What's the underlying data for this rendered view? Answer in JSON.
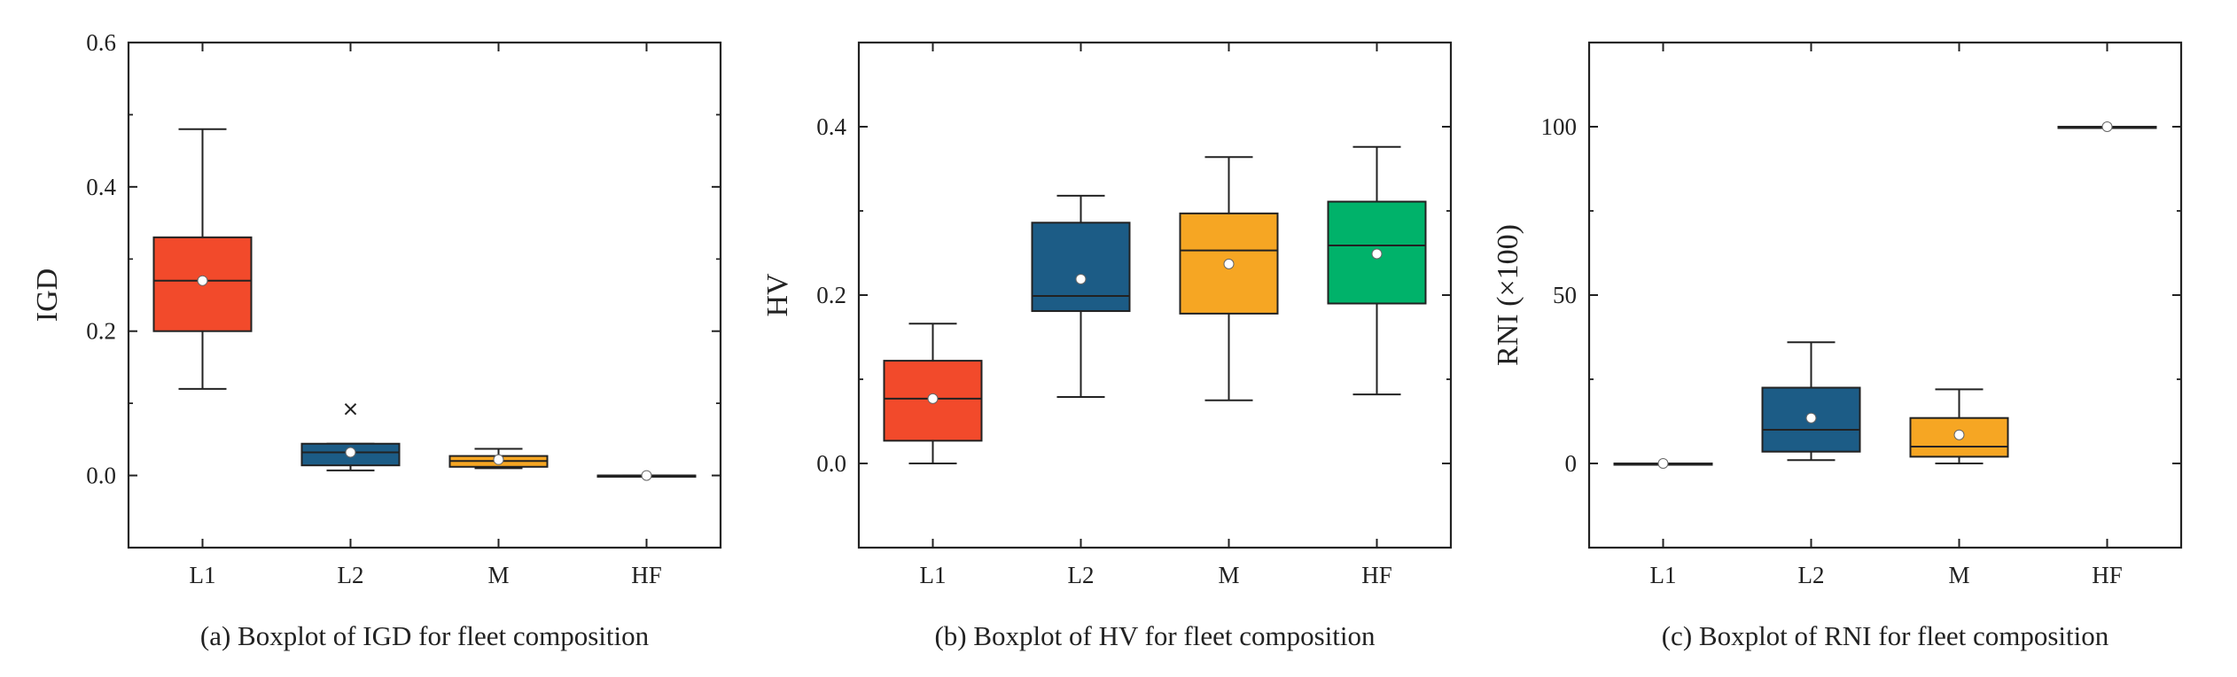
{
  "chart_data": [
    {
      "id": "a",
      "type": "boxplot",
      "title": "(a) Boxplot of IGD for fleet composition",
      "ylabel": "IGD",
      "xlabel": "",
      "categories": [
        "L1",
        "L2",
        "M",
        "HF"
      ],
      "ylim": [
        -0.1,
        0.6
      ],
      "yticks": [
        0.0,
        0.2,
        0.4,
        0.6
      ],
      "ytick_labels": [
        "0.0",
        "0.2",
        "0.4",
        "0.6"
      ],
      "boxes": [
        {
          "category": "L1",
          "whisker_low": 0.12,
          "q1": 0.2,
          "median": 0.27,
          "q3": 0.33,
          "whisker_high": 0.48,
          "mean": 0.27,
          "outliers": [],
          "color": "#F24A2B"
        },
        {
          "category": "L2",
          "whisker_low": 0.007,
          "q1": 0.014,
          "median": 0.032,
          "q3": 0.044,
          "whisker_high": 0.044,
          "mean": 0.032,
          "outliers": [
            0.092
          ],
          "color": "#1C5C86"
        },
        {
          "category": "M",
          "whisker_low": 0.01,
          "q1": 0.012,
          "median": 0.02,
          "q3": 0.027,
          "whisker_high": 0.037,
          "mean": 0.022,
          "outliers": [],
          "color": "#F6A623"
        },
        {
          "category": "HF",
          "whisker_low": 0.0,
          "q1": 0.0,
          "median": 0.0,
          "q3": 0.0,
          "whisker_high": 0.0,
          "mean": 0.0,
          "outliers": [],
          "color": "#FFFFFF"
        }
      ]
    },
    {
      "id": "b",
      "type": "boxplot",
      "title": "(b) Boxplot of HV for fleet composition",
      "ylabel": "HV",
      "xlabel": "",
      "categories": [
        "L1",
        "L2",
        "M",
        "HF"
      ],
      "ylim": [
        -0.1,
        0.5
      ],
      "yticks": [
        0.0,
        0.2,
        0.4
      ],
      "ytick_labels": [
        "0.0",
        "0.2",
        "0.4"
      ],
      "boxes": [
        {
          "category": "L1",
          "whisker_low": 0.0,
          "q1": 0.027,
          "median": 0.077,
          "q3": 0.122,
          "whisker_high": 0.166,
          "mean": 0.077,
          "outliers": [],
          "color": "#F24A2B"
        },
        {
          "category": "L2",
          "whisker_low": 0.079,
          "q1": 0.181,
          "median": 0.199,
          "q3": 0.286,
          "whisker_high": 0.318,
          "mean": 0.219,
          "outliers": [],
          "color": "#1C5C86"
        },
        {
          "category": "M",
          "whisker_low": 0.075,
          "q1": 0.178,
          "median": 0.253,
          "q3": 0.297,
          "whisker_high": 0.364,
          "mean": 0.237,
          "outliers": [],
          "color": "#F6A623"
        },
        {
          "category": "HF",
          "whisker_low": 0.082,
          "q1": 0.19,
          "median": 0.259,
          "q3": 0.311,
          "whisker_high": 0.376,
          "mean": 0.249,
          "outliers": [],
          "color": "#00B26A"
        }
      ]
    },
    {
      "id": "c",
      "type": "boxplot",
      "title": "(c) Boxplot of RNI for fleet composition",
      "ylabel": "RNI (×100)",
      "xlabel": "",
      "categories": [
        "L1",
        "L2",
        "M",
        "HF"
      ],
      "ylim": [
        -25,
        125
      ],
      "yticks": [
        0,
        50,
        100
      ],
      "ytick_labels": [
        "0",
        "50",
        "100"
      ],
      "boxes": [
        {
          "category": "L1",
          "whisker_low": 0.0,
          "q1": 0.0,
          "median": 0.0,
          "q3": 0.0,
          "whisker_high": 0.0,
          "mean": 0.0,
          "outliers": [],
          "color": "#FFFFFF"
        },
        {
          "category": "L2",
          "whisker_low": 1.0,
          "q1": 3.5,
          "median": 10.0,
          "q3": 22.5,
          "whisker_high": 36.0,
          "mean": 13.5,
          "outliers": [],
          "color": "#1C5C86"
        },
        {
          "category": "M",
          "whisker_low": 0.0,
          "q1": 2.0,
          "median": 5.0,
          "q3": 13.5,
          "whisker_high": 22.0,
          "mean": 8.5,
          "outliers": [],
          "color": "#F6A623"
        },
        {
          "category": "HF",
          "whisker_low": 100.0,
          "q1": 100.0,
          "median": 100.0,
          "q3": 100.0,
          "whisker_high": 100.0,
          "mean": 100.0,
          "outliers": [],
          "color": "#FFFFFF"
        }
      ]
    }
  ]
}
